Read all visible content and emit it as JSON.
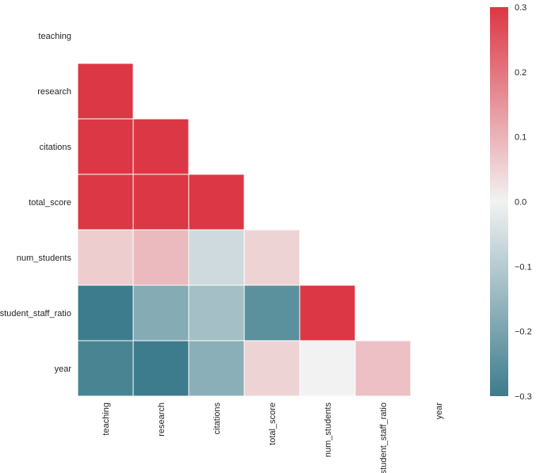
{
  "chart_data": {
    "type": "heatmap",
    "title": "",
    "xlabel": "",
    "ylabel": "",
    "variables": [
      "teaching",
      "research",
      "citations",
      "total_score",
      "num_students",
      "student_staff_ratio",
      "year"
    ],
    "mask": "upper-triangle-including-diagonal",
    "values": [
      [
        null,
        null,
        null,
        null,
        null,
        null,
        null
      ],
      [
        0.8,
        null,
        null,
        null,
        null,
        null,
        null
      ],
      [
        0.52,
        0.5,
        null,
        null,
        null,
        null,
        null
      ],
      [
        0.91,
        0.9,
        0.8,
        null,
        null,
        null,
        null
      ],
      [
        0.06,
        0.09,
        -0.06,
        0.05,
        null,
        null,
        null
      ],
      [
        -0.3,
        -0.18,
        -0.13,
        -0.25,
        0.4,
        null,
        null
      ],
      [
        -0.28,
        -0.3,
        -0.17,
        0.05,
        0.0,
        0.08,
        null
      ]
    ],
    "vmin": -0.3,
    "vmax": 0.3,
    "colormap": {
      "negative": "#3d7c8c",
      "center": "#f2f2f2",
      "positive": "#dc3744"
    },
    "colorbar": {
      "ticks": [
        0.3,
        0.2,
        0.1,
        0.0,
        -0.1,
        -0.2,
        -0.3
      ],
      "tick_labels": [
        "0.3",
        "0.2",
        "0.1",
        "0.0",
        "−0.1",
        "−0.2",
        "−0.3"
      ]
    }
  }
}
